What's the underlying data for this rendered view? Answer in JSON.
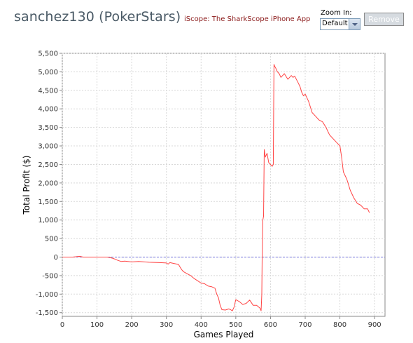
{
  "header": {
    "title": "sanchez130 (PokerStars)",
    "promo_link": "iScope: The SharkScope iPhone App",
    "zoom_label": "Zoom In:",
    "zoom_value": "Default",
    "remove_label": "Remove"
  },
  "colors": {
    "line": "#ff4444",
    "zero_line": "#6f6fd8",
    "grid": "#d8d8d8",
    "axis": "#888888",
    "title": "#4a5a66",
    "promo": "#8b1a1a"
  },
  "chart_data": {
    "type": "line",
    "title": "",
    "xlabel": "Games Played",
    "ylabel": "Total Profit ($)",
    "xlim": [
      0,
      930
    ],
    "ylim": [
      -1600,
      5500
    ],
    "xticks": [
      0,
      100,
      200,
      300,
      400,
      500,
      600,
      700,
      800,
      900
    ],
    "yticks": [
      -1500,
      -1000,
      -500,
      0,
      500,
      1000,
      1500,
      2000,
      2500,
      3000,
      3500,
      4000,
      4500,
      5000,
      5500
    ],
    "ytick_labels": [
      "-1,500",
      "-1,000",
      "-500",
      "0",
      "500",
      "1,000",
      "1,500",
      "2,000",
      "2,500",
      "3,000",
      "3,500",
      "4,000",
      "4,500",
      "5,000",
      "5,500"
    ],
    "grid": true,
    "zero_line": true,
    "series": [
      {
        "x": [
          0,
          30,
          50,
          60,
          100,
          130,
          145,
          150,
          160,
          170,
          180,
          200,
          220,
          250,
          280,
          300,
          305,
          310,
          330,
          335,
          340,
          345,
          350,
          360,
          370,
          380,
          390,
          400,
          410,
          420,
          430,
          440,
          445,
          450,
          455,
          460,
          470,
          480,
          485,
          490,
          495,
          500,
          510,
          520,
          530,
          540,
          550,
          560,
          570,
          573,
          575,
          576,
          578,
          580,
          582,
          585,
          590,
          595,
          600,
          605,
          608,
          610,
          612,
          615,
          620,
          625,
          630,
          640,
          650,
          660,
          665,
          670,
          680,
          685,
          690,
          695,
          700,
          710,
          720,
          730,
          740,
          750,
          760,
          770,
          780,
          790,
          800,
          805,
          810,
          820,
          830,
          840,
          850,
          860,
          870,
          880,
          885
        ],
        "y": [
          0,
          0,
          20,
          0,
          0,
          0,
          -30,
          -50,
          -90,
          -120,
          -110,
          -130,
          -120,
          -140,
          -150,
          -160,
          -190,
          -150,
          -190,
          -200,
          -280,
          -350,
          -400,
          -450,
          -500,
          -580,
          -640,
          -700,
          -720,
          -780,
          -800,
          -840,
          -1000,
          -1100,
          -1300,
          -1420,
          -1430,
          -1400,
          -1420,
          -1450,
          -1350,
          -1150,
          -1200,
          -1280,
          -1250,
          -1160,
          -1300,
          -1300,
          -1380,
          -1450,
          -1000,
          0,
          1000,
          1100,
          2900,
          2700,
          2800,
          2550,
          2500,
          2450,
          2500,
          5200,
          5150,
          5100,
          5000,
          4950,
          4850,
          4950,
          4800,
          4900,
          4850,
          4880,
          4700,
          4600,
          4450,
          4350,
          4400,
          4200,
          3900,
          3800,
          3700,
          3650,
          3500,
          3300,
          3200,
          3100,
          3000,
          2700,
          2300,
          2100,
          1800,
          1600,
          1450,
          1400,
          1300,
          1300,
          1200
        ]
      }
    ]
  }
}
